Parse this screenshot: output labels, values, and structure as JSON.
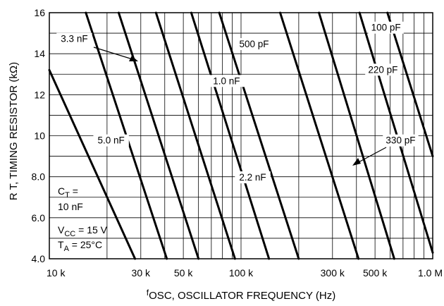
{
  "chart_data": {
    "type": "line",
    "x_scale": "log",
    "xlim": [
      10000,
      1000000
    ],
    "ylim": [
      4.0,
      16
    ],
    "grid": true,
    "xlabel_main": "f",
    "xlabel_sub": "OSC",
    "xlabel_rest": ", OSCILLATOR FREQUENCY (Hz)",
    "ylabel": "R T, TIMING RESISTOR (kΩ)",
    "x_ticks": [
      {
        "value": 10000,
        "label": "10 k"
      },
      {
        "value": 30000,
        "label": "30 k"
      },
      {
        "value": 50000,
        "label": "50 k"
      },
      {
        "value": 100000,
        "label": "100 k"
      },
      {
        "value": 300000,
        "label": "300 k"
      },
      {
        "value": 500000,
        "label": "500 k"
      },
      {
        "value": 1000000,
        "label": "1.0 M"
      }
    ],
    "y_ticks": [
      {
        "value": 4.0,
        "label": "4.0"
      },
      {
        "value": 6.0,
        "label": "6.0"
      },
      {
        "value": 8.0,
        "label": "8.0"
      },
      {
        "value": 10,
        "label": "10"
      },
      {
        "value": 12,
        "label": "12"
      },
      {
        "value": 14,
        "label": "14"
      },
      {
        "value": 16,
        "label": "16"
      }
    ],
    "series": [
      {
        "name": "5.0 nF",
        "points": [
          [
            10000,
            13.2
          ],
          [
            28000,
            4.0
          ]
        ]
      },
      {
        "name": "3.3 nF",
        "points": [
          [
            15500,
            16
          ],
          [
            41000,
            4.0
          ]
        ]
      },
      {
        "name": "2.2 nF",
        "points": [
          [
            23000,
            16
          ],
          [
            60000,
            4.0
          ]
        ]
      },
      {
        "name": "1.0 nF",
        "points": [
          [
            36000,
            16
          ],
          [
            93000,
            4.0
          ]
        ]
      },
      {
        "name": "1.0 nF (second curve)",
        "points": [
          [
            55000,
            16
          ],
          [
            140000,
            4.0
          ]
        ]
      },
      {
        "name": "500 pF",
        "points": [
          [
            77000,
            16
          ],
          [
            200000,
            4.0
          ]
        ]
      },
      {
        "name": "330 pF",
        "points": [
          [
            160000,
            16
          ],
          [
            410000,
            4.0
          ]
        ]
      },
      {
        "name": "220 pF",
        "points": [
          [
            255000,
            16
          ],
          [
            630000,
            4.0
          ]
        ]
      },
      {
        "name": "100 pF",
        "points": [
          [
            415000,
            16
          ],
          [
            1000000,
            4.3
          ]
        ]
      },
      {
        "name": "100 pF (second curve)",
        "points": [
          [
            580000,
            16
          ],
          [
            1000000,
            9.0
          ]
        ]
      }
    ],
    "curve_labels": [
      {
        "text": "5.0 nF",
        "freq": 21000,
        "r": 9.65
      },
      {
        "text": "3.3 nF",
        "freq": 13500,
        "r": 14.6
      },
      {
        "text": "1.0 nF",
        "freq": 84000,
        "r": 12.55
      },
      {
        "text": "500 pF",
        "freq": 117000,
        "r": 14.35
      },
      {
        "text": "2.2 nF",
        "freq": 115000,
        "r": 7.85
      },
      {
        "text": "330 pF",
        "freq": 680000,
        "r": 9.65
      },
      {
        "text": "220 pF",
        "freq": 550000,
        "r": 13.1
      },
      {
        "text": "100 pF",
        "freq": 570000,
        "r": 15.15
      }
    ],
    "notes": {
      "ct_main": "C",
      "ct_sub": "T",
      "ct_rest": " =",
      "ct_value": "10 nF",
      "vcc_main": "V",
      "vcc_sub": "CC",
      "vcc_rest": " = 15 V",
      "ta_main": "T",
      "ta_sub": "A",
      "ta_rest": " = 25°C"
    }
  }
}
